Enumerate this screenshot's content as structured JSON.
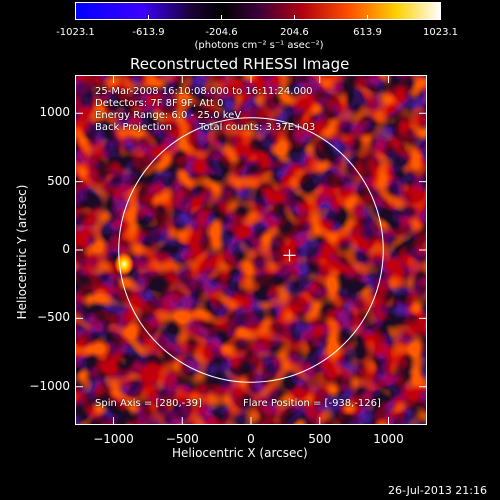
{
  "colorbar": {
    "ticks": [
      "-1023.1",
      "-613.9",
      "-204.6",
      "204.6",
      "613.9",
      "1023.1"
    ],
    "tick_values": [
      -1023.1,
      -613.9,
      -204.6,
      204.6,
      613.9,
      1023.1
    ],
    "units": "(photons cm⁻² s⁻¹ asec⁻²)",
    "colors": [
      "#0000ff",
      "#4b00ff",
      "#000000",
      "#500050",
      "#d00000",
      "#ff6000",
      "#ffd000",
      "#ffffff"
    ]
  },
  "chart_data": {
    "type": "heatmap",
    "title": "Reconstructed RHESSI Image",
    "xlabel": "Heliocentric X (arcsec)",
    "ylabel": "Heliocentric Y (arcsec)",
    "xlim": [
      -1280,
      1280
    ],
    "ylim": [
      -1280,
      1280
    ],
    "x_ticks": [
      -1000,
      -500,
      0,
      500,
      1000
    ],
    "y_ticks": [
      -1000,
      -500,
      0,
      500,
      1000
    ],
    "solar_limb_radius": 962,
    "spin_axis": [
      280,
      -39
    ],
    "flare_position": [
      -938,
      -126
    ],
    "annotations": {
      "time": "25-Mar-2008 16:10:08.000 to 16:11:24.000",
      "detectors": "Detectors: 7F 8F 9F, Att 0",
      "energy": "Energy Range: 6.0 - 25.0 keV",
      "method": "Back Projection",
      "counts": "Total counts: 3.37E+03",
      "spin": "Spin Axis = [280,-39]",
      "flare": "Flare Position = [-938,-126]"
    }
  },
  "footer": {
    "timestamp": "26-Jul-2013 21:16"
  }
}
